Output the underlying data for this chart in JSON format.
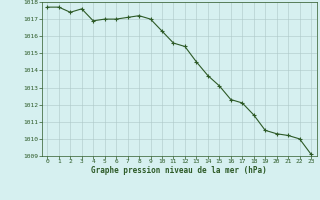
{
  "x": [
    0,
    1,
    2,
    3,
    4,
    5,
    6,
    7,
    8,
    9,
    10,
    11,
    12,
    13,
    14,
    15,
    16,
    17,
    18,
    19,
    20,
    21,
    22,
    23
  ],
  "y": [
    1017.7,
    1017.7,
    1017.4,
    1017.6,
    1016.9,
    1017.0,
    1017.0,
    1017.1,
    1017.2,
    1017.0,
    1016.3,
    1015.6,
    1015.4,
    1014.5,
    1013.7,
    1013.1,
    1012.3,
    1012.1,
    1011.4,
    1010.5,
    1010.3,
    1010.2,
    1010.0,
    1009.1
  ],
  "line_color": "#2d5a27",
  "marker": "+",
  "marker_color": "#2d5a27",
  "bg_color": "#d6f0f0",
  "grid_color": "#adc8c8",
  "xlabel": "Graphe pression niveau de la mer (hPa)",
  "xlabel_color": "#2d5a27",
  "tick_color": "#2d5a27",
  "ylim_min": 1009,
  "ylim_max": 1018,
  "xlim_min": -0.5,
  "xlim_max": 23.5,
  "yticks": [
    1009,
    1010,
    1011,
    1012,
    1013,
    1014,
    1015,
    1016,
    1017,
    1018
  ],
  "xticks": [
    0,
    1,
    2,
    3,
    4,
    5,
    6,
    7,
    8,
    9,
    10,
    11,
    12,
    13,
    14,
    15,
    16,
    17,
    18,
    19,
    20,
    21,
    22,
    23
  ]
}
